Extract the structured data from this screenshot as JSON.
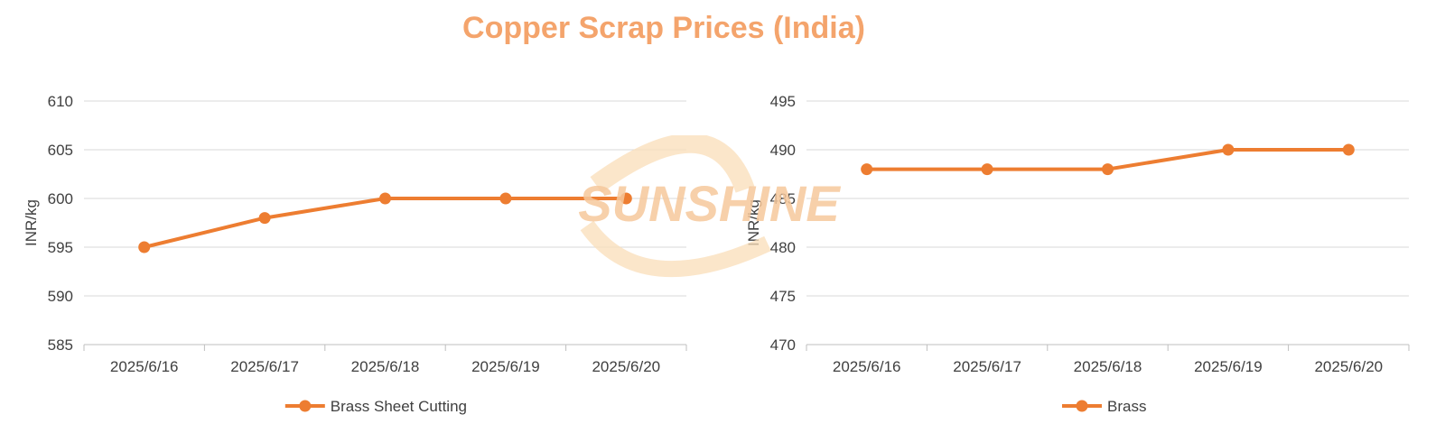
{
  "title": "Copper Scrap Prices (India)",
  "watermark_text": "SUNSHINE",
  "colors": {
    "series": "#ed7d31",
    "title": "#f4a46c",
    "grid": "#d9d9d9",
    "watermark": "#f6c89c"
  },
  "chart_data": [
    {
      "type": "line",
      "categories": [
        "2025/6/16",
        "2025/6/17",
        "2025/6/18",
        "2025/6/19",
        "2025/6/20"
      ],
      "series": [
        {
          "name": "Brass Sheet Cutting",
          "values": [
            595,
            598,
            600,
            600,
            600
          ]
        }
      ],
      "ylabel": "INR/kg",
      "ylim": [
        585,
        610
      ],
      "yticks": [
        585,
        590,
        595,
        600,
        605,
        610
      ],
      "grid": true,
      "legend": "bottom"
    },
    {
      "type": "line",
      "categories": [
        "2025/6/16",
        "2025/6/17",
        "2025/6/18",
        "2025/6/19",
        "2025/6/20"
      ],
      "series": [
        {
          "name": "Brass",
          "values": [
            488,
            488,
            488,
            490,
            490
          ]
        }
      ],
      "ylabel": "INR/kg",
      "ylim": [
        470,
        495
      ],
      "yticks": [
        470,
        475,
        480,
        485,
        490,
        495
      ],
      "grid": true,
      "legend": "bottom"
    }
  ]
}
